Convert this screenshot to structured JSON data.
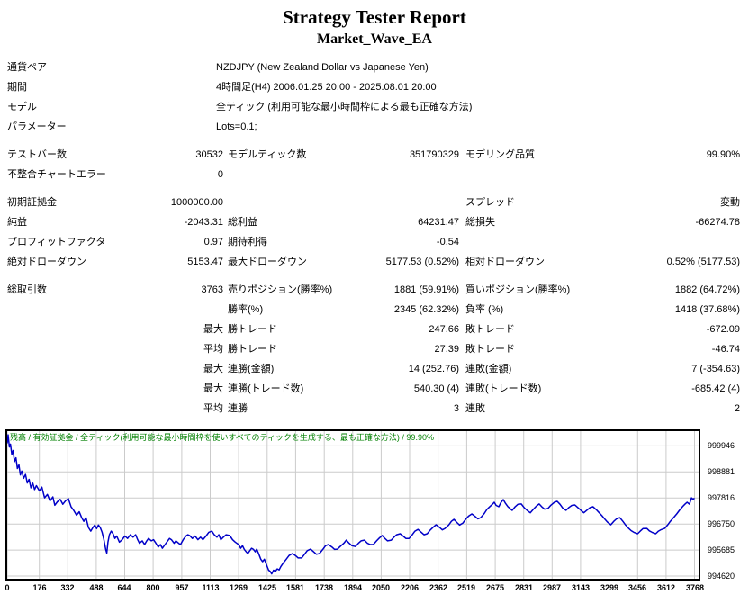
{
  "report": {
    "title": "Strategy Tester Report",
    "subtitle": "Market_Wave_EA"
  },
  "info_rows": [
    {
      "label": "通貨ペア",
      "value": "NZDJPY (New Zealand Dollar vs Japanese Yen)"
    },
    {
      "label": "期間",
      "value": "4時間足(H4) 2006.01.25 20:00 - 2025.08.01 20:00"
    },
    {
      "label": "モデル",
      "value": "全ティック (利用可能な最小時間枠による最も正確な方法)"
    },
    {
      "label": "パラメーター",
      "value": "Lots=0.1;"
    }
  ],
  "stat_groups": [
    {
      "rows": [
        [
          "テストバー数",
          "30532",
          "モデルティック数",
          "351790329",
          "モデリング品質",
          "99.90%"
        ],
        [
          "不整合チャートエラー",
          "0",
          "",
          "",
          "",
          ""
        ]
      ]
    },
    {
      "rows": [
        [
          "初期証拠金",
          "1000000.00",
          "",
          "",
          "スプレッド",
          "変動"
        ],
        [
          "純益",
          "-2043.31",
          "総利益",
          "64231.47",
          "総損失",
          "-66274.78"
        ],
        [
          "プロフィットファクタ",
          "0.97",
          "期待利得",
          "-0.54",
          "",
          ""
        ],
        [
          "絶対ドローダウン",
          "5153.47",
          "最大ドローダウン",
          "5177.53 (0.52%)",
          "相対ドローダウン",
          "0.52% (5177.53)"
        ]
      ]
    },
    {
      "rows": [
        [
          "総取引数",
          "3763",
          "売りポジション(勝率%)",
          "1881 (59.91%)",
          "買いポジション(勝率%)",
          "1882 (64.72%)"
        ],
        [
          "",
          "",
          "勝率(%)",
          "2345 (62.32%)",
          "負率 (%)",
          "1418 (37.68%)"
        ],
        [
          "",
          "最大",
          "勝トレード",
          "247.66",
          "敗トレード",
          "-672.09"
        ],
        [
          "",
          "平均",
          "勝トレード",
          "27.39",
          "敗トレード",
          "-46.74"
        ],
        [
          "",
          "最大",
          "連勝(金額)",
          "14 (252.76)",
          "連敗(金額)",
          "7 (-354.63)"
        ],
        [
          "",
          "最大",
          "連勝(トレード数)",
          "540.30 (4)",
          "連敗(トレード数)",
          "-685.42 (4)"
        ],
        [
          "",
          "平均",
          "連勝",
          "3",
          "連敗",
          "2"
        ]
      ]
    }
  ],
  "chart_data": {
    "type": "line",
    "overlay_label": "残高 / 有効証拠金 / 全ティック(利用可能な最小時間枠を使いすべてのティックを生成する、最も正確な方法) / 99.90%",
    "overlay_color": "#008000",
    "line_color": "#0000C8",
    "grid_color": "#CBCBCB",
    "xlabel": "",
    "ylabel": "",
    "xlim": [
      0,
      3790
    ],
    "ylim": [
      994510,
      1000550
    ],
    "x_ticks": [
      0,
      176,
      332,
      488,
      644,
      800,
      957,
      1113,
      1269,
      1425,
      1581,
      1738,
      1894,
      2050,
      2206,
      2362,
      2519,
      2675,
      2831,
      2987,
      3143,
      3299,
      3456,
      3612,
      3768
    ],
    "y_ticks": [
      999946,
      998881,
      997816,
      996750,
      995685,
      994620
    ],
    "series": [
      {
        "name": "残高",
        "points": [
          [
            0,
            1000050
          ],
          [
            5,
            1000400
          ],
          [
            12,
            999900
          ],
          [
            18,
            1000020
          ],
          [
            25,
            999600
          ],
          [
            32,
            999760
          ],
          [
            40,
            999300
          ],
          [
            48,
            999460
          ],
          [
            56,
            999020
          ],
          [
            64,
            999170
          ],
          [
            72,
            998760
          ],
          [
            80,
            998920
          ],
          [
            90,
            998620
          ],
          [
            100,
            998780
          ],
          [
            110,
            998430
          ],
          [
            120,
            998580
          ],
          [
            130,
            998230
          ],
          [
            140,
            998420
          ],
          [
            150,
            998160
          ],
          [
            160,
            998320
          ],
          [
            176,
            998110
          ],
          [
            190,
            998260
          ],
          [
            205,
            997820
          ],
          [
            220,
            997960
          ],
          [
            235,
            997700
          ],
          [
            250,
            997860
          ],
          [
            261,
            997520
          ],
          [
            275,
            997660
          ],
          [
            290,
            997760
          ],
          [
            305,
            997560
          ],
          [
            320,
            997700
          ],
          [
            335,
            997790
          ],
          [
            350,
            997460
          ],
          [
            365,
            997300
          ],
          [
            380,
            997110
          ],
          [
            395,
            997250
          ],
          [
            408,
            997010
          ],
          [
            420,
            996860
          ],
          [
            432,
            997010
          ],
          [
            445,
            996610
          ],
          [
            458,
            996460
          ],
          [
            470,
            996610
          ],
          [
            480,
            996710
          ],
          [
            490,
            996560
          ],
          [
            500,
            996710
          ],
          [
            510,
            996610
          ],
          [
            520,
            996410
          ],
          [
            530,
            996110
          ],
          [
            540,
            995710
          ],
          [
            546,
            995560
          ],
          [
            552,
            996010
          ],
          [
            560,
            996310
          ],
          [
            570,
            996460
          ],
          [
            580,
            996360
          ],
          [
            590,
            996160
          ],
          [
            600,
            996260
          ],
          [
            615,
            996010
          ],
          [
            630,
            996110
          ],
          [
            645,
            996260
          ],
          [
            660,
            996160
          ],
          [
            675,
            996310
          ],
          [
            690,
            996210
          ],
          [
            704,
            996310
          ],
          [
            715,
            996110
          ],
          [
            725,
            995960
          ],
          [
            740,
            996060
          ],
          [
            753,
            995910
          ],
          [
            765,
            996060
          ],
          [
            775,
            996160
          ],
          [
            790,
            996060
          ],
          [
            802,
            996110
          ],
          [
            815,
            995960
          ],
          [
            828,
            995810
          ],
          [
            840,
            995910
          ],
          [
            851,
            995760
          ],
          [
            865,
            995910
          ],
          [
            880,
            996060
          ],
          [
            890,
            996160
          ],
          [
            900,
            996110
          ],
          [
            915,
            995960
          ],
          [
            925,
            996060
          ],
          [
            940,
            995960
          ],
          [
            950,
            995910
          ],
          [
            965,
            996110
          ],
          [
            980,
            996260
          ],
          [
            990,
            996310
          ],
          [
            1000,
            996280
          ],
          [
            1015,
            996160
          ],
          [
            1030,
            996260
          ],
          [
            1045,
            996110
          ],
          [
            1060,
            996210
          ],
          [
            1073,
            996110
          ],
          [
            1090,
            996260
          ],
          [
            1105,
            996410
          ],
          [
            1122,
            996460
          ],
          [
            1135,
            996310
          ],
          [
            1150,
            996210
          ],
          [
            1160,
            996310
          ],
          [
            1171,
            996110
          ],
          [
            1185,
            996210
          ],
          [
            1200,
            996310
          ],
          [
            1220,
            996280
          ],
          [
            1235,
            996110
          ],
          [
            1250,
            996010
          ],
          [
            1269,
            995910
          ],
          [
            1280,
            995760
          ],
          [
            1290,
            995860
          ],
          [
            1300,
            995710
          ],
          [
            1310,
            995610
          ],
          [
            1319,
            995540
          ],
          [
            1330,
            995660
          ],
          [
            1340,
            995760
          ],
          [
            1350,
            995710
          ],
          [
            1360,
            995610
          ],
          [
            1368,
            995720
          ],
          [
            1380,
            995510
          ],
          [
            1390,
            995310
          ],
          [
            1400,
            995210
          ],
          [
            1410,
            995310
          ],
          [
            1417,
            995170
          ],
          [
            1425,
            995010
          ],
          [
            1433,
            994860
          ],
          [
            1442,
            994810
          ],
          [
            1450,
            994710
          ],
          [
            1460,
            994860
          ],
          [
            1470,
            994810
          ],
          [
            1480,
            994910
          ],
          [
            1491,
            994870
          ],
          [
            1500,
            995010
          ],
          [
            1515,
            995170
          ],
          [
            1530,
            995310
          ],
          [
            1545,
            995460
          ],
          [
            1564,
            995540
          ],
          [
            1580,
            995460
          ],
          [
            1595,
            995360
          ],
          [
            1614,
            995360
          ],
          [
            1630,
            995510
          ],
          [
            1645,
            995660
          ],
          [
            1663,
            995720
          ],
          [
            1680,
            995610
          ],
          [
            1695,
            995510
          ],
          [
            1712,
            995540
          ],
          [
            1730,
            995710
          ],
          [
            1745,
            995860
          ],
          [
            1761,
            995910
          ],
          [
            1780,
            995810
          ],
          [
            1795,
            995710
          ],
          [
            1810,
            995720
          ],
          [
            1830,
            995860
          ],
          [
            1845,
            995960
          ],
          [
            1859,
            996090
          ],
          [
            1875,
            995960
          ],
          [
            1890,
            995860
          ],
          [
            1909,
            995830
          ],
          [
            1925,
            995960
          ],
          [
            1940,
            996060
          ],
          [
            1958,
            996090
          ],
          [
            1975,
            995960
          ],
          [
            1990,
            995910
          ],
          [
            2007,
            995910
          ],
          [
            2025,
            996060
          ],
          [
            2040,
            996180
          ],
          [
            2056,
            996280
          ],
          [
            2070,
            996160
          ],
          [
            2085,
            996060
          ],
          [
            2105,
            996090
          ],
          [
            2120,
            996210
          ],
          [
            2135,
            996310
          ],
          [
            2154,
            996350
          ],
          [
            2170,
            996260
          ],
          [
            2185,
            996160
          ],
          [
            2203,
            996160
          ],
          [
            2220,
            996310
          ],
          [
            2235,
            996460
          ],
          [
            2252,
            996530
          ],
          [
            2270,
            996410
          ],
          [
            2285,
            996310
          ],
          [
            2302,
            996350
          ],
          [
            2320,
            996510
          ],
          [
            2335,
            996620
          ],
          [
            2351,
            996720
          ],
          [
            2370,
            996610
          ],
          [
            2385,
            996510
          ],
          [
            2400,
            996570
          ],
          [
            2420,
            996710
          ],
          [
            2435,
            996860
          ],
          [
            2449,
            996940
          ],
          [
            2465,
            996810
          ],
          [
            2480,
            996710
          ],
          [
            2498,
            996790
          ],
          [
            2515,
            996960
          ],
          [
            2530,
            997080
          ],
          [
            2547,
            997160
          ],
          [
            2565,
            997060
          ],
          [
            2580,
            996960
          ],
          [
            2596,
            997010
          ],
          [
            2615,
            997180
          ],
          [
            2630,
            997350
          ],
          [
            2645,
            997460
          ],
          [
            2660,
            997560
          ],
          [
            2670,
            997640
          ],
          [
            2680,
            997510
          ],
          [
            2695,
            997460
          ],
          [
            2705,
            997610
          ],
          [
            2719,
            997750
          ],
          [
            2730,
            997610
          ],
          [
            2745,
            997460
          ],
          [
            2768,
            997310
          ],
          [
            2785,
            997460
          ],
          [
            2800,
            997560
          ],
          [
            2818,
            997570
          ],
          [
            2835,
            997410
          ],
          [
            2850,
            997310
          ],
          [
            2867,
            997210
          ],
          [
            2885,
            997360
          ],
          [
            2900,
            997480
          ],
          [
            2916,
            997570
          ],
          [
            2930,
            997460
          ],
          [
            2945,
            997360
          ],
          [
            2965,
            997390
          ],
          [
            2980,
            997520
          ],
          [
            3000,
            997640
          ],
          [
            3014,
            997680
          ],
          [
            3030,
            997560
          ],
          [
            3045,
            997410
          ],
          [
            3063,
            997310
          ],
          [
            3080,
            997430
          ],
          [
            3095,
            997510
          ],
          [
            3112,
            997530
          ],
          [
            3130,
            997410
          ],
          [
            3145,
            997310
          ],
          [
            3161,
            997210
          ],
          [
            3180,
            997330
          ],
          [
            3195,
            997420
          ],
          [
            3211,
            997460
          ],
          [
            3230,
            997330
          ],
          [
            3245,
            997210
          ],
          [
            3260,
            997090
          ],
          [
            3275,
            996960
          ],
          [
            3290,
            996830
          ],
          [
            3309,
            996720
          ],
          [
            3325,
            996860
          ],
          [
            3340,
            996960
          ],
          [
            3358,
            997010
          ],
          [
            3375,
            996860
          ],
          [
            3390,
            996710
          ],
          [
            3407,
            996570
          ],
          [
            3420,
            996480
          ],
          [
            3435,
            996410
          ],
          [
            3456,
            996350
          ],
          [
            3470,
            996460
          ],
          [
            3485,
            996560
          ],
          [
            3506,
            996570
          ],
          [
            3520,
            996470
          ],
          [
            3535,
            996410
          ],
          [
            3555,
            996350
          ],
          [
            3570,
            996460
          ],
          [
            3585,
            996520
          ],
          [
            3604,
            996570
          ],
          [
            3620,
            996710
          ],
          [
            3635,
            996860
          ],
          [
            3653,
            997010
          ],
          [
            3670,
            997160
          ],
          [
            3685,
            997310
          ],
          [
            3702,
            997460
          ],
          [
            3715,
            997560
          ],
          [
            3727,
            997640
          ],
          [
            3740,
            997560
          ],
          [
            3751,
            997820
          ],
          [
            3760,
            997760
          ],
          [
            3768,
            997810
          ]
        ]
      }
    ]
  }
}
